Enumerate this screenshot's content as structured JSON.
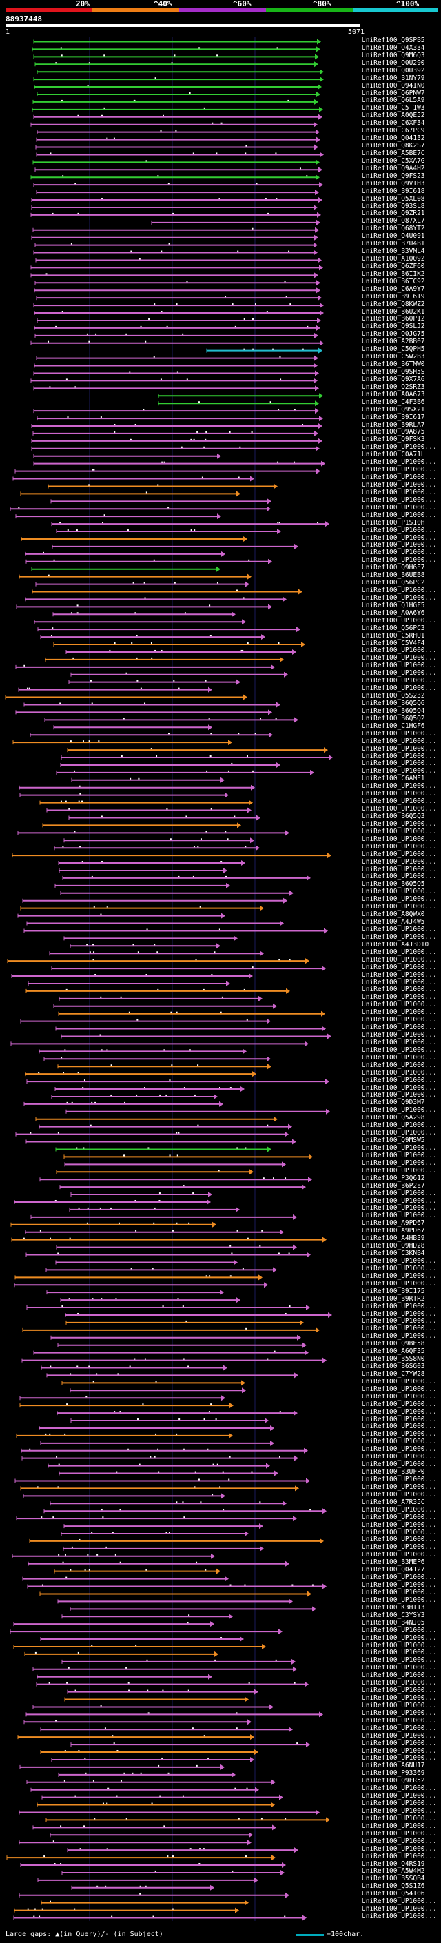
{
  "scale": {
    "labels": [
      "20%",
      "^40%",
      "^60%",
      "^80%",
      "^100%"
    ],
    "colors": [
      "#e0141c",
      "#ee7d15",
      "#a42dc8",
      "#18b418",
      "#18c8d0"
    ]
  },
  "reference": {
    "id": "88937448",
    "start": "1",
    "end": "5071"
  },
  "colors": {
    "violet": "#cc66cc",
    "orange": "#ee8c22",
    "green": "#33cc33",
    "cyan": "#22bbcc",
    "white": "#ffffff"
  },
  "hits": [
    "UniRef100_Q9SPB5",
    "UniRef100_Q4X334",
    "UniRef100_Q9M6Q3",
    "UniRef100_Q0U290",
    "UniRef100_Q0U392",
    "UniRef100_B1NY79",
    "UniRef100_Q94IN0",
    "UniRef100_Q6PNW7",
    "UniRef100_Q6L5A9",
    "UniRef100_C5T1W3",
    "UniRef100_A0QE52",
    "UniRef100_C6XF34",
    "UniRef100_C67PC9",
    "UniRef100_Q04132",
    "UniRef100_Q8K2S7",
    "UniRef100_A5BE7C",
    "UniRef100_C5XA7G",
    "UniRef100_Q9A4H2",
    "UniRef100_Q9FS23",
    "UniRef100_Q9VTH3",
    "UniRef100_B9I618",
    "UniRef100_Q5XL08",
    "UniRef100_Q93SL8",
    "UniRef100_Q9ZR21",
    "UniRef100_Q87XL7",
    "UniRef100_Q68YT2",
    "UniRef100_Q4U091",
    "UniRef100_B7U4B1",
    "UniRef100_B3VML4",
    "UniRef100_A1Q092",
    "UniRef100_Q6ZF60",
    "UniRef100_B6IIK2",
    "UniRef100_B6TC92",
    "UniRef100_C6A9Y7",
    "UniRef100_B9I619",
    "UniRef100_Q8KWZ2",
    "UniRef100_B6U2K1",
    "UniRef100_B6QP12",
    "UniRef100_Q9SLJ2",
    "UniRef100_Q0JG75",
    "UniRef100_A2BB07",
    "UniRef100_C5QPH5",
    "UniRef100_C5W2B3",
    "UniRef100_B6TMW0",
    "UniRef100_Q9SH5S",
    "UniRef100_Q9X7A6",
    "UniRef100_Q2SRZ3",
    "UniRef100_A0A673",
    "UniRef100_C4F3B6",
    "UniRef100_Q9SX21",
    "UniRef100_B9I617",
    "UniRef100_B9RLA7",
    "UniRef100_Q9A875",
    "UniRef100_Q9FSK3",
    "UniRef100_UP1000...",
    "UniRef100_C0A71L",
    "UniRef100_UP1000...",
    "UniRef100_UP1000...",
    "UniRef100_UP1000...",
    "UniRef100_UP1000...",
    "UniRef100_UP1000...",
    "UniRef100_UP1000...",
    "UniRef100_UP1000...",
    "UniRef100_UP1000...",
    "UniRef100_P1S10H",
    "UniRef100_UP1000...",
    "UniRef100_UP1000...",
    "UniRef100_UP1000...",
    "UniRef100_UP1000...",
    "UniRef100_UP1000...",
    "UniRef100_Q9H6E7",
    "UniRef100_B6UEB8",
    "UniRef100_Q56PC2",
    "UniRef100_UP1000...",
    "UniRef100_UP1000...",
    "UniRef100_Q1HGF5",
    "UniRef100_A0A6Y6",
    "UniRef100_UP1000...",
    "UniRef100_Q56PC3",
    "UniRef100_C5RHU1",
    "UniRef100_C5V4F4",
    "UniRef100_UP1000...",
    "UniRef100_UP1000...",
    "UniRef100_UP1000...",
    "UniRef100_UP1000...",
    "UniRef100_UP1000...",
    "UniRef100_UP1000...",
    "UniRef100_Q5S232",
    "UniRef100_B6Q5Q6",
    "UniRef100_B6Q5Q4",
    "UniRef100_B6Q5Q2",
    "UniRef100_C1HGF6",
    "UniRef100_UP1000...",
    "UniRef100_UP1000...",
    "UniRef100_UP1000...",
    "UniRef100_UP1000...",
    "UniRef100_UP1000...",
    "UniRef100_UP1000...",
    "UniRef100_C6AME1",
    "UniRef100_UP1000...",
    "UniRef100_UP1000...",
    "UniRef100_UP1000...",
    "UniRef100_UP1000...",
    "UniRef100_B6Q5Q3",
    "UniRef100_UP1000...",
    "UniRef100_UP1000...",
    "UniRef100_UP1000...",
    "UniRef100_UP1000...",
    "UniRef100_UP1000...",
    "UniRef100_UP1000...",
    "UniRef100_UP1000...",
    "UniRef100_UP1000...",
    "UniRef100_B6Q5Q5",
    "UniRef100_UP1000...",
    "UniRef100_UP1000...",
    "UniRef100_UP1000...",
    "UniRef100_A8QWX0",
    "UniRef100_A4J4W5",
    "UniRef100_UP1000...",
    "UniRef100_UP1000...",
    "UniRef100_A4J3D10",
    "UniRef100_UP1000...",
    "UniRef100_UP1000...",
    "UniRef100_UP1000...",
    "UniRef100_UP1000...",
    "UniRef100_UP1000...",
    "UniRef100_UP1000...",
    "UniRef100_UP1000...",
    "UniRef100_UP1000...",
    "UniRef100_UP1000...",
    "UniRef100_UP1000...",
    "UniRef100_UP1000...",
    "UniRef100_UP1000...",
    "UniRef100_UP1000...",
    "UniRef100_UP1000...",
    "UniRef100_UP1000...",
    "UniRef100_UP1000...",
    "UniRef100_UP1000...",
    "UniRef100_UP1000...",
    "UniRef100_UP1000...",
    "UniRef100_UP1000...",
    "UniRef100_Q9D3M7",
    "UniRef100_UP1000...",
    "UniRef100_Q5A298",
    "UniRef100_UP1000...",
    "UniRef100_UP1000...",
    "UniRef100_Q9MSW5",
    "UniRef100_UP1000...",
    "UniRef100_UP1000...",
    "UniRef100_UP1000...",
    "UniRef100_UP1000...",
    "UniRef100_P3Q612",
    "UniRef100_B6P2E7",
    "UniRef100_UP1000...",
    "UniRef100_UP1000...",
    "UniRef100_UP1000...",
    "UniRef100_UP1000...",
    "UniRef100_A9PD67",
    "UniRef100_A9PD67",
    "UniRef100_A4HB39",
    "UniRef100_Q9HD28",
    "UniRef100_C3KNB4",
    "UniRef100_UP1000...",
    "UniRef100_UP1000...",
    "UniRef100_UP1000...",
    "UniRef100_UP1000...",
    "UniRef100_B9I175",
    "UniRef100_B9RTR2",
    "UniRef100_UP1000...",
    "UniRef100_UP1000...",
    "UniRef100_UP1000...",
    "UniRef100_UP1000...",
    "UniRef100_UP1000...",
    "UniRef100_Q9BE58",
    "UniRef100_A6QF35",
    "UniRef100_B5S8N0",
    "UniRef100_B6SG03",
    "UniRef100_C7YW28",
    "UniRef100_UP1000...",
    "UniRef100_UP1000...",
    "UniRef100_UP1000...",
    "UniRef100_UP1000...",
    "UniRef100_UP1000...",
    "UniRef100_UP1000...",
    "UniRef100_UP1000...",
    "UniRef100_UP1000...",
    "UniRef100_UP1000...",
    "UniRef100_UP1000...",
    "UniRef100_UP1000...",
    "UniRef100_UP1000...",
    "UniRef100_B3UFP0",
    "UniRef100_UP1000...",
    "UniRef100_UP1000...",
    "UniRef100_UP1000...",
    "UniRef100_A7R35C",
    "UniRef100_UP1000...",
    "UniRef100_UP1000...",
    "UniRef100_UP1000...",
    "UniRef100_UP1000...",
    "UniRef100_UP1000...",
    "UniRef100_UP1000...",
    "UniRef100_UP1000...",
    "UniRef100_B3MEP6",
    "UniRef100_Q04127",
    "UniRef100_UP1000...",
    "UniRef100_UP1000...",
    "UniRef100_UP1000...",
    "UniRef100_UP1000...",
    "UniRef100_K3HT13",
    "UniRef100_C3YSY3",
    "UniRef100_B4NJ05",
    "UniRef100_UP1000...",
    "UniRef100_UP1000...",
    "UniRef100_UP1000...",
    "UniRef100_UP1000...",
    "UniRef100_UP1000...",
    "UniRef100_UP1000...",
    "UniRef100_UP1000...",
    "UniRef100_UP1000...",
    "UniRef100_UP1000...",
    "UniRef100_UP1000...",
    "UniRef100_UP1000...",
    "UniRef100_UP1000...",
    "UniRef100_UP1000...",
    "UniRef100_UP1000...",
    "UniRef100_UP1000...",
    "UniRef100_UP1000...",
    "UniRef100_UP1000...",
    "UniRef100_UP1000...",
    "UniRef100_A6NU17",
    "UniRef100_P93369",
    "UniRef100_Q9FR52",
    "UniRef100_UP1000...",
    "UniRef100_UP1000...",
    "UniRef100_UP1000...",
    "UniRef100_UP1000...",
    "UniRef100_UP1000...",
    "UniRef100_UP1000...",
    "UniRef100_UP1000...",
    "UniRef100_UP1000...",
    "UniRef100_UP1000...",
    "UniRef100_UP1000...",
    "UniRef100_Q4RS19",
    "UniRef100_A5W4M2",
    "UniRef100_B5SQB4",
    "UniRef100_Q5S1Z6",
    "UniRef100_Q54T06",
    "UniRef100_UP1000...",
    "UniRef100_UP1000...",
    "UniRef100_UP1000..."
  ],
  "legend": {
    "gaps_text": "Large gaps: ▲(in Query)/- (in Subject)",
    "scale_text": "=100char."
  }
}
